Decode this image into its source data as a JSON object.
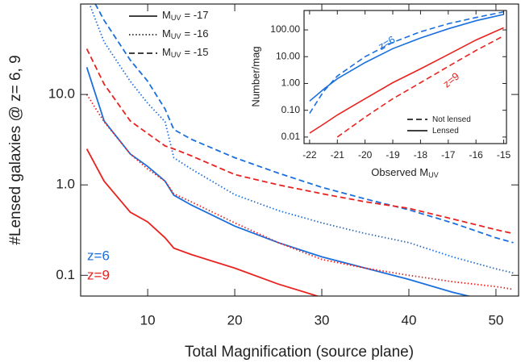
{
  "chart_data": [
    {
      "type": "line",
      "xlabel": "Total Magnification (source plane)",
      "ylabel": "#Lensed galaxies @ z= 6, 9",
      "x": [
        3,
        5,
        8,
        10,
        12,
        13,
        15,
        20,
        25,
        30,
        35,
        40,
        45,
        50,
        52
      ],
      "xlim": [
        2.3,
        52.6
      ],
      "xticks": [
        10,
        20,
        30,
        40,
        50
      ],
      "ylog": true,
      "ylim": [
        0.059,
        100
      ],
      "yticks": [
        0.1,
        {
          "value": 1,
          "label": "1.0"
        },
        {
          "value": 10,
          "label": "10.0"
        }
      ],
      "series": [
        {
          "color": "#1a6fdf",
          "dash": "solid",
          "values": [
            20,
            5.1,
            2.2,
            1.6,
            1.1,
            0.77,
            0.6,
            0.35,
            0.23,
            0.16,
            0.12,
            0.09,
            0.065,
            0.05,
            0.045
          ]
        },
        {
          "color": "#1a6fdf",
          "dash": "dotted",
          "values": [
            120,
            38,
            14,
            8,
            5,
            2,
            1.5,
            0.78,
            0.52,
            0.38,
            0.29,
            0.23,
            0.16,
            0.118,
            0.106
          ]
        },
        {
          "color": "#1a6fdf",
          "dash": "dashed",
          "values": [
            150,
            66,
            24,
            14,
            6.9,
            4.1,
            3.2,
            2,
            1.35,
            0.94,
            0.7,
            0.53,
            0.38,
            0.26,
            0.23
          ]
        },
        {
          "color": "#e8231f",
          "dash": "solid",
          "values": [
            2.5,
            1.1,
            0.5,
            0.39,
            0.26,
            0.2,
            0.17,
            0.12,
            0.08,
            0.057,
            null,
            null,
            null,
            null,
            null
          ]
        },
        {
          "color": "#e8231f",
          "dash": "dotted",
          "values": [
            10,
            5,
            2.2,
            1.5,
            1.1,
            0.8,
            0.65,
            0.38,
            0.23,
            0.15,
            0.12,
            0.1,
            0.085,
            0.075,
            0.07
          ]
        },
        {
          "color": "#e8231f",
          "dash": "dashed",
          "values": [
            32,
            13,
            5.1,
            3.7,
            2.7,
            2.5,
            2.1,
            1.3,
            1.0,
            0.8,
            0.65,
            0.55,
            0.42,
            0.32,
            0.29
          ]
        }
      ],
      "legend": [
        {
          "label": "M",
          "sub": "UV",
          "suffix": "= -17",
          "dash": "solid",
          "color": "#000000"
        },
        {
          "label": "M",
          "sub": "UV",
          "suffix": "= -16",
          "dash": "dotted",
          "color": "#000000"
        },
        {
          "label": "M",
          "sub": "UV",
          "suffix": "= -15",
          "dash": "dashed",
          "color": "#000000"
        }
      ],
      "annotations": [
        {
          "text": "z=6",
          "color": "#1a6fdf"
        },
        {
          "text": "z=9",
          "color": "#e8231f"
        }
      ]
    },
    {
      "type": "line",
      "xlabel": "Observed M",
      "xlabel_sub": "UV",
      "ylabel": "Number/mag",
      "x": [
        -22,
        -21.5,
        -21,
        -20,
        -19,
        -18,
        -17,
        -16,
        -15
      ],
      "xlim": [
        -22.2,
        -14.9
      ],
      "xticks": [
        -22,
        -21,
        -20,
        -19,
        -18,
        -17,
        -16,
        -15
      ],
      "ylog": true,
      "ylim": [
        0.0057,
        530
      ],
      "yticks": [
        {
          "value": 0.01,
          "label": "0.01"
        },
        {
          "value": 0.1,
          "label": "0.10"
        },
        {
          "value": 1,
          "label": "1.00"
        },
        {
          "value": 10,
          "label": "10.00"
        },
        {
          "value": 100,
          "label": "100.00"
        }
      ],
      "series": [
        {
          "color": "#1a6fdf",
          "dash": "solid",
          "values": [
            0.22,
            0.6,
            1.5,
            6,
            20,
            50,
            110,
            220,
            380
          ]
        },
        {
          "color": "#1a6fdf",
          "dash": "dashed",
          "values": [
            0.077,
            0.5,
            1.9,
            10,
            34,
            85,
            170,
            290,
            470
          ]
        },
        {
          "color": "#e8231f",
          "dash": "solid",
          "values": [
            0.014,
            0.03,
            0.067,
            0.27,
            1.07,
            3.5,
            12,
            42,
            120
          ]
        },
        {
          "color": "#e8231f",
          "dash": "dashed",
          "values": [
            null,
            null,
            0.01,
            0.055,
            0.27,
            1.07,
            4.3,
            17,
            60
          ]
        }
      ],
      "legend": [
        {
          "label": "Not lensed",
          "dash": "dashed",
          "color": "#000000"
        },
        {
          "label": "Lensed",
          "dash": "solid",
          "color": "#000000"
        }
      ],
      "annotations": [
        {
          "text": "z=6",
          "color": "#1a6fdf"
        },
        {
          "text": "z=9",
          "color": "#e8231f"
        }
      ]
    }
  ]
}
